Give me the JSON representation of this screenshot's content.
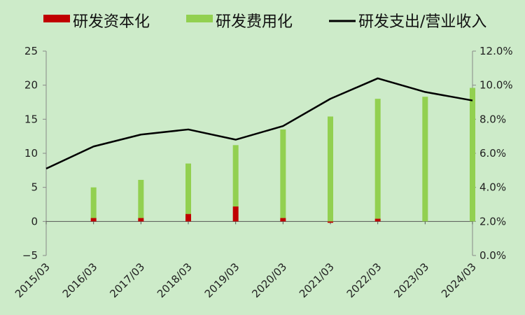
{
  "chart_data": {
    "type": "bar",
    "categories": [
      "2015/03",
      "2016/03",
      "2017/03",
      "2018/03",
      "2019/03",
      "2020/03",
      "2021/03",
      "2022/03",
      "2023/03",
      "2024/03"
    ],
    "series": [
      {
        "name": "研发资本化",
        "type": "bar",
        "axis": "left",
        "color": "#c00000",
        "values": [
          0,
          0.5,
          0.5,
          1.1,
          2.2,
          0.5,
          -0.2,
          0.4,
          0,
          0
        ]
      },
      {
        "name": "研发费用化",
        "type": "bar",
        "axis": "left",
        "color": "#92d050",
        "values": [
          0,
          4.5,
          5.6,
          7.4,
          9.0,
          13.0,
          15.4,
          17.6,
          18.3,
          19.6
        ]
      },
      {
        "name": "研发支出/营业收入",
        "type": "line",
        "axis": "right",
        "color": "#000000",
        "values": [
          5.1,
          6.4,
          7.1,
          7.4,
          6.8,
          7.6,
          9.2,
          10.4,
          9.6,
          9.1
        ]
      }
    ],
    "y_left": {
      "min": -5,
      "max": 25,
      "ticks": [
        -5,
        0,
        5,
        10,
        15,
        20,
        25
      ],
      "tick_labels": [
        "−5",
        "0",
        "5",
        "10",
        "15",
        "20",
        "25"
      ]
    },
    "y_right": {
      "min": 0,
      "max": 12,
      "ticks": [
        0,
        2,
        4,
        6,
        8,
        10,
        12
      ],
      "tick_labels": [
        "0.0%",
        "2.0%",
        "4.0%",
        "6.0%",
        "8.0%",
        "10.0%",
        "12.0%"
      ]
    },
    "legend_position": "top",
    "grid": false
  }
}
